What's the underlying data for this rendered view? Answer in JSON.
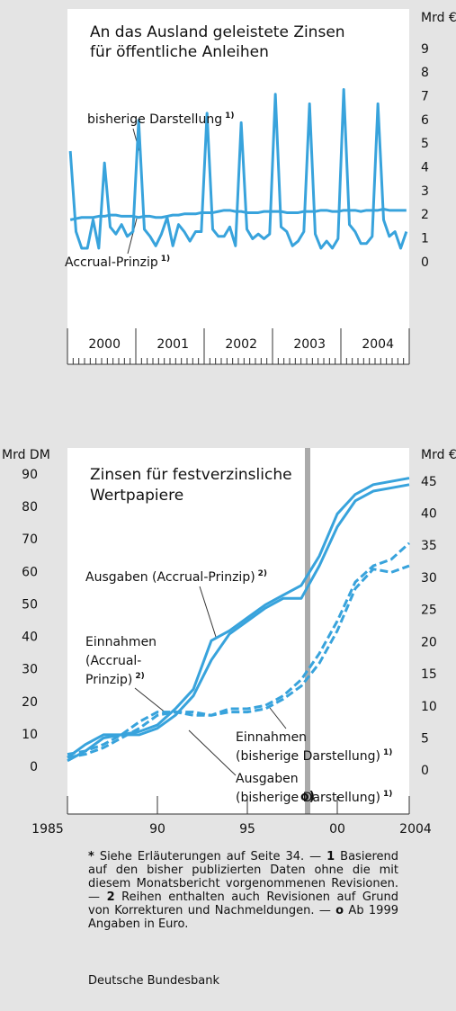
{
  "chart_data": [
    {
      "type": "line",
      "title": [
        "An das Ausland geleistete Zinsen",
        "für öffentliche Anleihen"
      ],
      "y_unit": "Mrd €",
      "categories": [
        null,
        null,
        null,
        null,
        null,
        null,
        "2000",
        null,
        null,
        null,
        null,
        null,
        null,
        null,
        null,
        null,
        null,
        null,
        "2001",
        null,
        null,
        null,
        null,
        null,
        null,
        null,
        null,
        null,
        null,
        null,
        "2002",
        null,
        null,
        null,
        null,
        null,
        null,
        null,
        null,
        null,
        null,
        null,
        "2003",
        null,
        null,
        null,
        null,
        null,
        null,
        null,
        null,
        null,
        null,
        null,
        "2004",
        null,
        null,
        null,
        null,
        null
      ],
      "ylim": [
        -4.3,
        10.7
      ],
      "yticks": [
        0,
        1,
        2,
        3,
        4,
        5,
        6,
        7,
        8,
        9
      ],
      "series": [
        {
          "label": [
            "bisherige Darstellung"
          ],
          "note": "1)",
          "color": "#38a3dc",
          "dashed": false,
          "values": [
            4.7,
            1.3,
            0.6,
            0.6,
            1.8,
            0.6,
            4.2,
            1.5,
            1.2,
            1.6,
            1.1,
            1.3,
            6.0,
            1.4,
            1.1,
            0.7,
            1.2,
            1.9,
            0.7,
            1.6,
            1.3,
            0.9,
            1.3,
            1.3,
            6.3,
            1.4,
            1.1,
            1.1,
            1.5,
            0.7,
            5.9,
            1.4,
            1.0,
            1.2,
            1.0,
            1.2,
            7.1,
            1.5,
            1.3,
            0.7,
            0.9,
            1.3,
            6.7,
            1.2,
            0.6,
            0.9,
            0.6,
            1.0,
            7.3,
            1.6,
            1.3,
            0.8,
            0.8,
            1.1,
            6.7,
            1.8,
            1.1,
            1.3,
            0.6,
            1.3
          ]
        },
        {
          "label": [
            "Accrual-Prinzip"
          ],
          "note": "1)",
          "color": "#38a3dc",
          "dashed": false,
          "values": [
            1.8,
            1.85,
            1.9,
            1.9,
            1.9,
            1.95,
            1.95,
            2.0,
            2.0,
            1.95,
            1.95,
            1.95,
            1.9,
            1.95,
            1.95,
            1.9,
            1.9,
            1.95,
            2.0,
            2.0,
            2.05,
            2.05,
            2.05,
            2.1,
            2.1,
            2.1,
            2.15,
            2.2,
            2.2,
            2.15,
            2.15,
            2.1,
            2.1,
            2.1,
            2.15,
            2.15,
            2.15,
            2.15,
            2.1,
            2.1,
            2.1,
            2.15,
            2.15,
            2.15,
            2.2,
            2.2,
            2.15,
            2.15,
            2.2,
            2.2,
            2.2,
            2.15,
            2.2,
            2.2,
            2.2,
            2.25,
            2.2,
            2.2,
            2.2,
            2.2
          ]
        }
      ]
    },
    {
      "type": "line",
      "title": [
        "Zinsen für festverzinsliche",
        "Wertpapiere"
      ],
      "y_unit": "Mrd DM",
      "y2_unit": "Mrd €",
      "marker": "o)",
      "x": [
        1985,
        1986,
        1987,
        1988,
        1989,
        1990,
        1991,
        1992,
        1993,
        1994,
        1995,
        1996,
        1997,
        1998,
        1999,
        2000,
        2001,
        2002,
        2003,
        2004
      ],
      "xlim": [
        1985,
        2004
      ],
      "xticks": [
        1985,
        {
          "value": 1990,
          "label": "90"
        },
        {
          "value": 1995,
          "label": "95"
        },
        {
          "value": 2000,
          "label": "00"
        },
        2004
      ],
      "ylim": [
        -14.4,
        98.3
      ],
      "yticks": [
        0,
        10,
        20,
        30,
        40,
        50,
        60,
        70,
        80,
        90
      ],
      "y2lim": [
        -6.7,
        50.3
      ],
      "y2ticks": [
        0,
        5,
        10,
        15,
        20,
        25,
        30,
        35,
        40,
        45
      ],
      "series": [
        {
          "label": [
            "Ausgaben (Accrual-Prinzip)"
          ],
          "note": "2)",
          "color": "#38a3dc",
          "dashed": false,
          "values": [
            3,
            7,
            10,
            10,
            11,
            13,
            18,
            24,
            39,
            42,
            46,
            50,
            53,
            56,
            65,
            78,
            84,
            87,
            88,
            89
          ]
        },
        {
          "label": [
            "Ausgaben",
            "(bisherige Darstellung)"
          ],
          "note": "1)",
          "color": "#38a3dc",
          "dashed": false,
          "values": [
            2,
            5,
            9,
            10,
            10,
            12,
            16,
            22,
            33,
            41,
            45,
            49,
            52,
            52,
            62,
            74,
            82,
            85,
            86,
            87
          ]
        },
        {
          "label": [
            "Einnahmen",
            "(Accrual-",
            "Prinzip)"
          ],
          "note": "2)",
          "color": "#38a3dc",
          "dashed": true,
          "values": [
            4,
            5,
            7,
            10,
            14,
            17,
            17,
            17,
            16,
            18,
            18,
            19,
            22,
            27,
            35,
            45,
            57,
            62,
            64,
            69
          ]
        },
        {
          "label": [
            "Einnahmen",
            "(bisherige Darstellung)"
          ],
          "note": "1)",
          "color": "#38a3dc",
          "dashed": true,
          "values": [
            3,
            4,
            6,
            9,
            12,
            16,
            17,
            16,
            16,
            17,
            17,
            18,
            21,
            25,
            32,
            42,
            55,
            61,
            60,
            62
          ]
        }
      ]
    }
  ],
  "footnote": [
    {
      "bold": true,
      "text": "*"
    },
    {
      "bold": false,
      "text": " Siehe Erläuterungen auf Seite 34. — "
    },
    {
      "bold": true,
      "text": "1"
    },
    {
      "bold": false,
      "text": " Basierend auf den bisher publizierten Daten ohne die mit diesem Monatsbericht vorgenommenen Revisionen. — "
    },
    {
      "bold": true,
      "text": "2"
    },
    {
      "bold": false,
      "text": " Reihen enthalten auch Revisionen auf Grund von Korrekturen und Nachmeldungen. — "
    },
    {
      "bold": true,
      "text": "o"
    },
    {
      "bold": false,
      "text": " Ab 1999 Angaben in Euro."
    }
  ],
  "source": "Deutsche Bundesbank"
}
